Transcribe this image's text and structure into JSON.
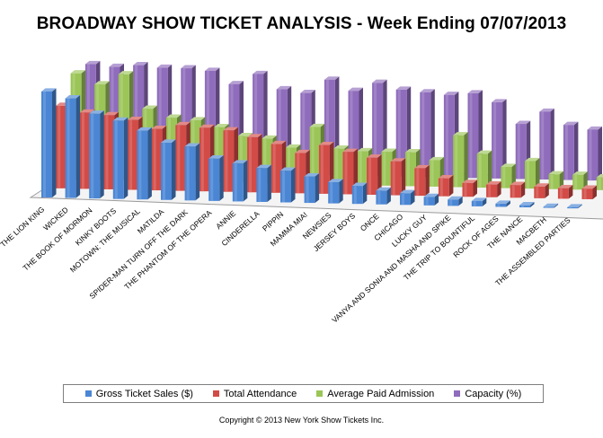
{
  "title": "BROADWAY SHOW TICKET ANALYSIS - Week Ending 07/07/2013",
  "copyright": "Copyright © 2013 New York Show Tickets Inc.",
  "legend": [
    {
      "label": "Gross Ticket Sales ($)",
      "color": "#4a86d4"
    },
    {
      "label": "Total Attendance",
      "color": "#d24b46"
    },
    {
      "label": "Average Paid Admission",
      "color": "#9bc557"
    },
    {
      "label": "Capacity (%)",
      "color": "#8f6cbc"
    }
  ],
  "chart_data": {
    "type": "bar",
    "style": "3d-clustered-relative",
    "title": "BROADWAY SHOW TICKET ANALYSIS - Week Ending 07/07/2013",
    "xlabel": "",
    "ylabel": "",
    "ylim": [
      0,
      100
    ],
    "categories": [
      "THE LION KING",
      "WICKED",
      "THE BOOK OF MORMON",
      "KINKY BOOTS",
      "MOTOWN: THE MUSICAL",
      "MATILDA",
      "SPIDER-MAN TURN OFF THE DARK",
      "THE PHANTOM OF THE OPERA",
      "ANNIE",
      "CINDERELLA",
      "PIPPIN",
      "MAMMA MIA!",
      "NEWSIES",
      "JERSEY BOYS",
      "ONCE",
      "CHICAGO",
      "LUCKY GUY",
      "VANYA AND SONIA AND MASHA AND SPIKE",
      "THE TRIP TO BOUNTIFUL",
      "ROCK OF AGES",
      "THE NANCE",
      "MACBETH",
      "THE ASSEMBLED PARTIES"
    ],
    "series": [
      {
        "name": "Gross Ticket Sales ($)",
        "color": "#4a86d4",
        "values": [
          100,
          94,
          80,
          74,
          65,
          54,
          51,
          40,
          36,
          32,
          30,
          25,
          20,
          17,
          13,
          11,
          8,
          6,
          5,
          3,
          2,
          1,
          1
        ]
      },
      {
        "name": "Total Attendance",
        "color": "#d24b46",
        "values": [
          78,
          72,
          70,
          66,
          58,
          62,
          60,
          58,
          52,
          46,
          38,
          46,
          40,
          35,
          32,
          26,
          17,
          13,
          12,
          12,
          11,
          10,
          10
        ]
      },
      {
        "name": "Average Paid Admission",
        "color": "#9bc557",
        "values": [
          100,
          90,
          100,
          68,
          60,
          58,
          52,
          44,
          42,
          34,
          54,
          34,
          32,
          32,
          32,
          25,
          49,
          32,
          20,
          26,
          14,
          14,
          12
        ]
      },
      {
        "name": "Capacity (%)",
        "color": "#8f6cbc",
        "values": [
          100,
          98,
          100,
          98,
          98,
          96,
          84,
          94,
          80,
          77,
          90,
          80,
          88,
          82,
          80,
          78,
          80,
          72,
          52,
          64,
          52,
          48,
          54
        ]
      }
    ]
  }
}
